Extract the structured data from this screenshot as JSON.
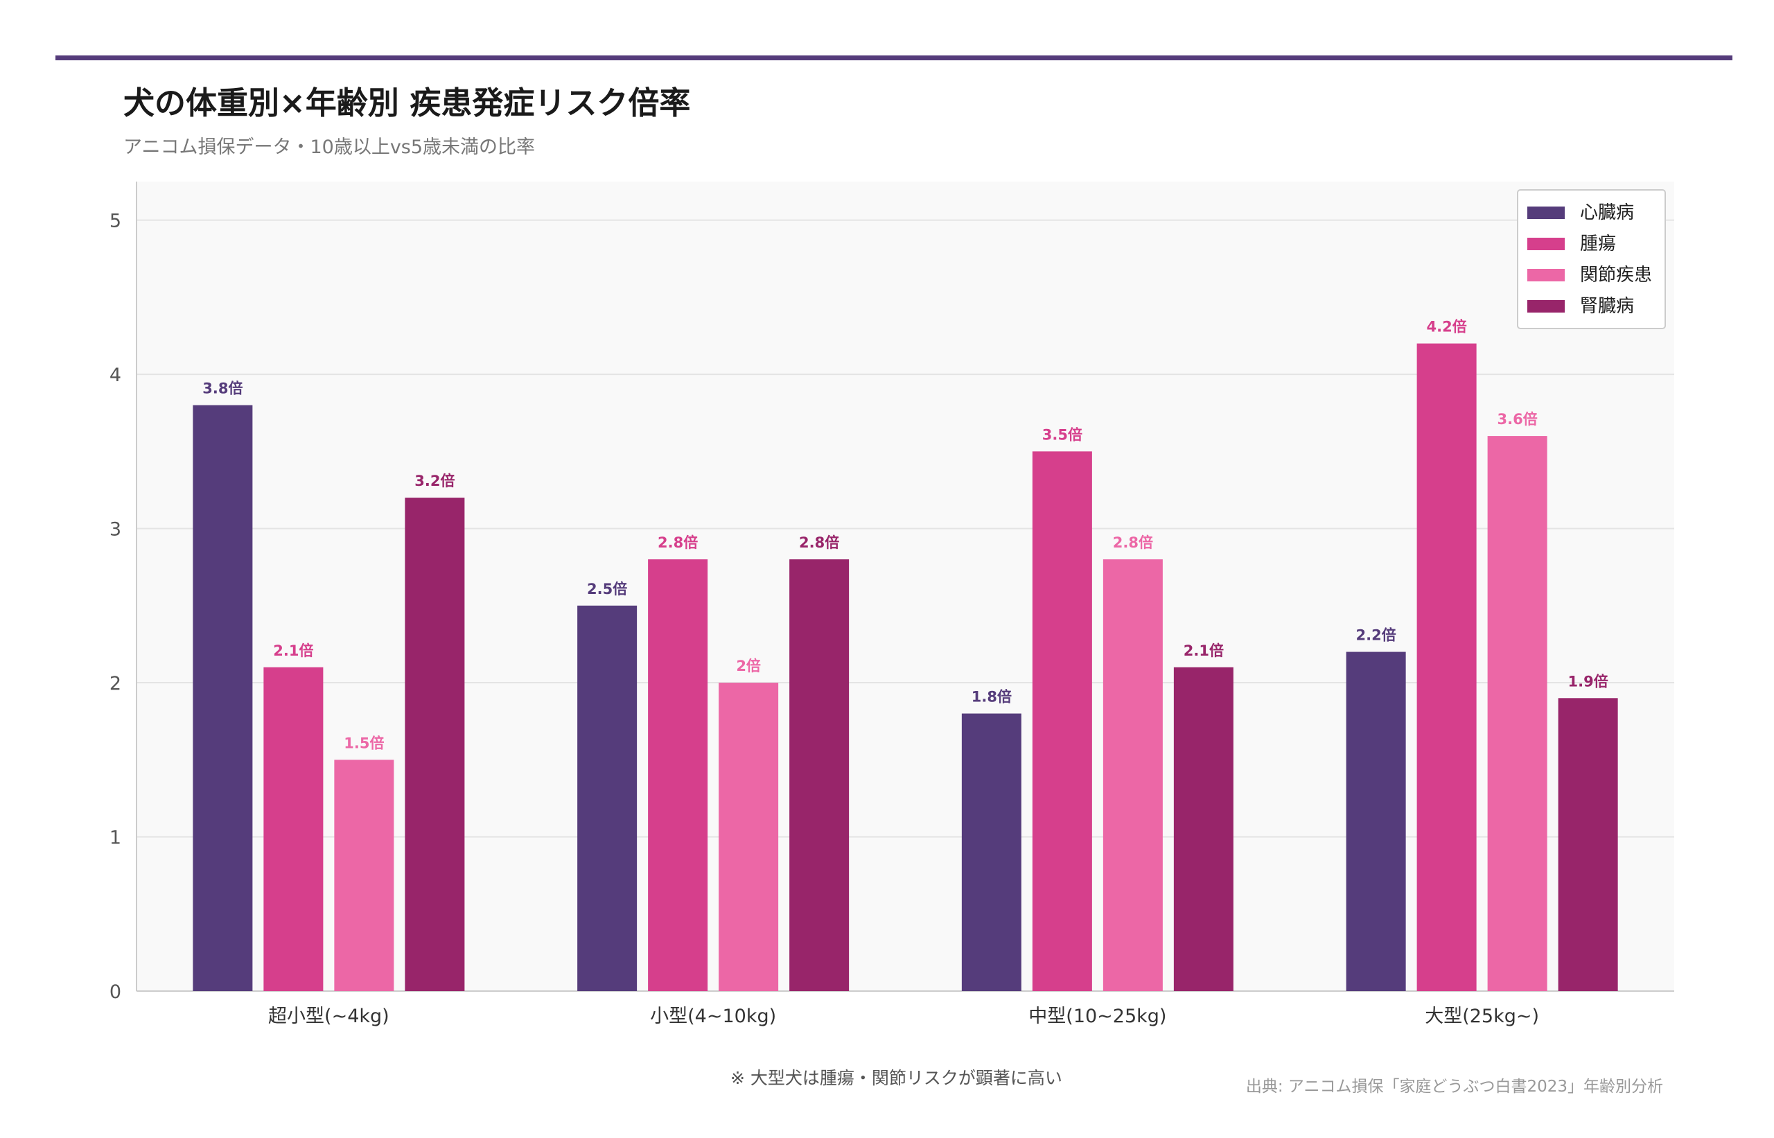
{
  "title": "犬の体重別×年齢別 疾患発症リスク倍率",
  "subtitle": "アニコム損保データ・10歳以上vs5歳未満の比率",
  "footnote": "※ 大型犬は腫瘍・関節リスクが顕著に高い",
  "source": "出典: アニコム損保「家庭どうぶつ白書2023」年齢別分析",
  "chart_data": {
    "type": "bar",
    "categories": [
      "超小型(~4kg)",
      "小型(4~10kg)",
      "中型(10~25kg)",
      "大型(25kg~)"
    ],
    "series": [
      {
        "name": "心臓病",
        "color": "#553c7b",
        "values": [
          3.8,
          2.5,
          1.8,
          2.2
        ],
        "labels": [
          "3.8倍",
          "2.5倍",
          "1.8倍",
          "2.2倍"
        ]
      },
      {
        "name": "腫瘍",
        "color": "#d63f8c",
        "values": [
          2.1,
          2.8,
          3.5,
          4.2
        ],
        "labels": [
          "2.1倍",
          "2.8倍",
          "3.5倍",
          "4.2倍"
        ]
      },
      {
        "name": "関節疾患",
        "color": "#ec67a6",
        "values": [
          1.5,
          2.0,
          2.8,
          3.6
        ],
        "labels": [
          "1.5倍",
          "2倍",
          "2.8倍",
          "3.6倍"
        ]
      },
      {
        "name": "腎臓病",
        "color": "#98256a",
        "values": [
          3.2,
          2.8,
          2.1,
          1.9
        ],
        "labels": [
          "3.2倍",
          "2.8倍",
          "2.1倍",
          "1.9倍"
        ]
      }
    ],
    "yticks": [
      "0",
      "1",
      "2",
      "3",
      "4",
      "5"
    ],
    "ylim": [
      0,
      5.25
    ],
    "grid": true,
    "legend": "top-right"
  }
}
